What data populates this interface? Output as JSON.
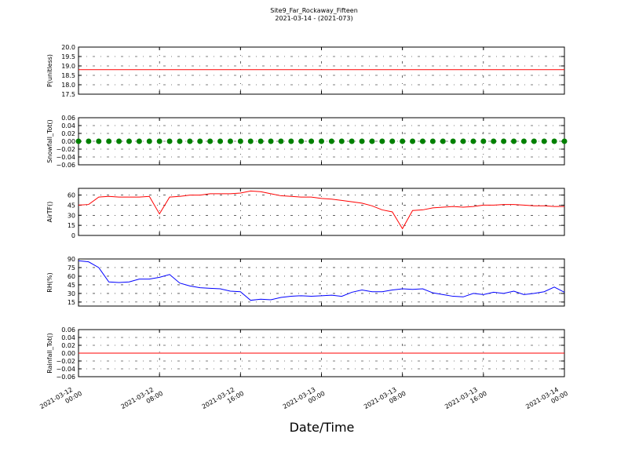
{
  "title": "Site9_Far_Rockaway_Fifteen",
  "subtitle": "2021-03-14 - (2021-073)",
  "x_label": "Date/Time",
  "xlim": [
    "2021-03-12 00:00",
    "2021-03-14 00:00"
  ],
  "xticks": [
    {
      "value": "2021-03-12 00:00",
      "label": "2021-03-12 00:00"
    },
    {
      "value": "2021-03-12 08:00",
      "label": "2021-03-12 08:00"
    },
    {
      "value": "2021-03-12 16:00",
      "label": "2021-03-12 16:00"
    },
    {
      "value": "2021-03-13 00:00",
      "label": "2021-03-13 00:00"
    },
    {
      "value": "2021-03-13 08:00",
      "label": "2021-03-13 08:00"
    },
    {
      "value": "2021-03-13 16:00",
      "label": "2021-03-13 16:00"
    },
    {
      "value": "2021-03-14 00:00",
      "label": "2021-03-14 00:00"
    }
  ],
  "x": [
    "2021-03-12 00:00",
    "2021-03-12 01:00",
    "2021-03-12 02:00",
    "2021-03-12 03:00",
    "2021-03-12 04:00",
    "2021-03-12 05:00",
    "2021-03-12 06:00",
    "2021-03-12 07:00",
    "2021-03-12 08:00",
    "2021-03-12 09:00",
    "2021-03-12 10:00",
    "2021-03-12 11:00",
    "2021-03-12 12:00",
    "2021-03-12 13:00",
    "2021-03-12 14:00",
    "2021-03-12 15:00",
    "2021-03-12 16:00",
    "2021-03-12 17:00",
    "2021-03-12 18:00",
    "2021-03-12 19:00",
    "2021-03-12 20:00",
    "2021-03-12 21:00",
    "2021-03-12 22:00",
    "2021-03-12 23:00",
    "2021-03-13 00:00",
    "2021-03-13 01:00",
    "2021-03-13 02:00",
    "2021-03-13 03:00",
    "2021-03-13 04:00",
    "2021-03-13 05:00",
    "2021-03-13 06:00",
    "2021-03-13 07:00",
    "2021-03-13 08:00",
    "2021-03-13 09:00",
    "2021-03-13 10:00",
    "2021-03-13 11:00",
    "2021-03-13 12:00",
    "2021-03-13 13:00",
    "2021-03-13 14:00",
    "2021-03-13 15:00",
    "2021-03-13 16:00",
    "2021-03-13 17:00",
    "2021-03-13 18:00",
    "2021-03-13 19:00",
    "2021-03-13 20:00",
    "2021-03-13 21:00",
    "2021-03-13 22:00",
    "2021-03-13 23:00",
    "2021-03-14 00:00"
  ],
  "chart_data": [
    {
      "type": "line",
      "y_label": "P(unitless)",
      "ylim": [
        17.5,
        20.0
      ],
      "yticks": [
        17.5,
        {
          "value": 18,
          "label": "18.0"
        },
        18.5,
        {
          "value": 19,
          "label": "19.0"
        },
        19.5,
        {
          "value": 20,
          "label": "20.0"
        }
      ],
      "grid": true,
      "series": [
        {
          "color": "#ff0000",
          "values": [
            18.8,
            18.8,
            18.8,
            18.8,
            18.8,
            18.8,
            18.8,
            18.8,
            18.8,
            18.8,
            18.8,
            18.8,
            18.8,
            18.8,
            18.8,
            18.8,
            18.8,
            18.8,
            18.8,
            18.8,
            18.8,
            18.8,
            18.8,
            18.8,
            18.8,
            18.8,
            18.8,
            18.8,
            18.8,
            18.8,
            18.8,
            18.8,
            18.8,
            18.8,
            18.8,
            18.8,
            18.8,
            18.8,
            18.8,
            18.8,
            18.8,
            18.8,
            18.8,
            18.8,
            18.8,
            18.8,
            18.8,
            18.8,
            18.8
          ]
        }
      ]
    },
    {
      "type": "scatter",
      "y_label": "Snowfall_Tot()",
      "ylim": [
        -0.06,
        0.06
      ],
      "yticks": [
        {
          "value": -0.06,
          "label": "−0.06"
        },
        {
          "value": -0.04,
          "label": "−0.04"
        },
        {
          "value": -0.02,
          "label": "−0.02"
        },
        {
          "value": 0,
          "label": "0.00"
        },
        0.02,
        0.04,
        0.06
      ],
      "grid": true,
      "series": [
        {
          "color": "#008000",
          "values": [
            0,
            0,
            0,
            0,
            0,
            0,
            0,
            0,
            0,
            0,
            0,
            0,
            0,
            0,
            0,
            0,
            0,
            0,
            0,
            0,
            0,
            0,
            0,
            0,
            0,
            0,
            0,
            0,
            0,
            0,
            0,
            0,
            0,
            0,
            0,
            0,
            0,
            0,
            0,
            0,
            0,
            0,
            0,
            0,
            0,
            0,
            0,
            0,
            0
          ]
        }
      ]
    },
    {
      "type": "line",
      "y_label": "AirTF()",
      "ylim": [
        0,
        70
      ],
      "yticks": [
        0,
        15,
        30,
        45,
        60
      ],
      "grid": true,
      "series": [
        {
          "color": "#ff0000",
          "values": [
            45,
            46,
            57,
            58,
            57,
            57,
            57,
            58,
            32,
            57,
            58,
            60,
            60,
            62,
            62,
            62,
            63,
            66,
            65,
            62,
            59,
            58,
            57,
            57,
            55,
            54,
            52,
            50,
            48,
            44,
            38,
            35,
            10,
            37,
            38,
            41,
            42,
            43,
            42,
            43,
            45,
            45,
            46,
            46,
            45,
            44,
            44,
            43,
            43
          ]
        }
      ]
    },
    {
      "type": "line",
      "y_label": "RH(%)",
      "ylim": [
        8,
        90
      ],
      "yticks": [
        15,
        30,
        45,
        60,
        75,
        90
      ],
      "grid": true,
      "series": [
        {
          "color": "#0000ff",
          "values": [
            87,
            85,
            75,
            50,
            49,
            50,
            55,
            55,
            58,
            63,
            48,
            43,
            40,
            39,
            38,
            34,
            33,
            18,
            20,
            19,
            23,
            25,
            26,
            25,
            26,
            27,
            25,
            32,
            36,
            33,
            33,
            36,
            38,
            37,
            38,
            31,
            28,
            25,
            24,
            30,
            28,
            32,
            30,
            34,
            28,
            30,
            33,
            41,
            32
          ]
        }
      ]
    },
    {
      "type": "line",
      "y_label": "Rainfall_Tot()",
      "ylim": [
        -0.06,
        0.06
      ],
      "yticks": [
        {
          "value": -0.06,
          "label": "−0.06"
        },
        {
          "value": -0.04,
          "label": "−0.04"
        },
        {
          "value": -0.02,
          "label": "−0.02"
        },
        {
          "value": 0,
          "label": "0.00"
        },
        0.02,
        0.04,
        0.06
      ],
      "grid": true,
      "series": [
        {
          "color": "#ff0000",
          "values": [
            0,
            0,
            0,
            0,
            0,
            0,
            0,
            0,
            0,
            0,
            0,
            0,
            0,
            0,
            0,
            0,
            0,
            0,
            0,
            0,
            0,
            0,
            0,
            0,
            0,
            0,
            0,
            0,
            0,
            0,
            0,
            0,
            0,
            0,
            0,
            0,
            0,
            0,
            0,
            0,
            0,
            0,
            0,
            0,
            0,
            0,
            0,
            0,
            0
          ]
        }
      ]
    }
  ]
}
